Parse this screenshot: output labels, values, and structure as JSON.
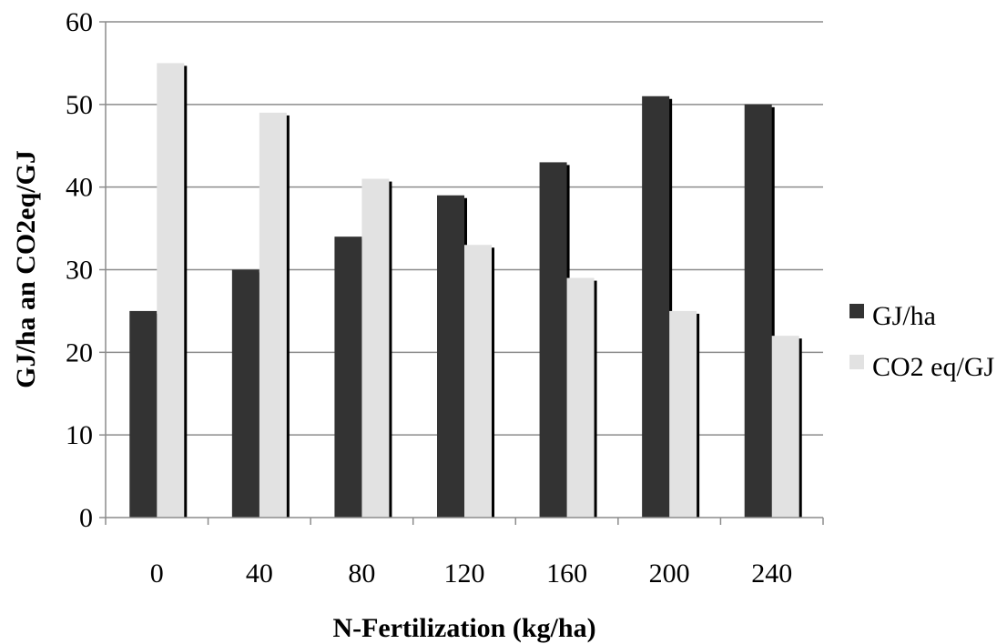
{
  "chart_data": {
    "type": "bar",
    "xlabel": "N-Fertilization (kg/ha)",
    "ylabel": "GJ/ha an CO2eq/GJ",
    "categories": [
      "0",
      "40",
      "80",
      "120",
      "160",
      "200",
      "240"
    ],
    "series": [
      {
        "name": "GJ/ha",
        "values": [
          25,
          30,
          34,
          39,
          43,
          51,
          50
        ],
        "color": "#333333"
      },
      {
        "name": "CO2 eq/GJ",
        "values": [
          55,
          49,
          41,
          33,
          29,
          25,
          22
        ],
        "color": "#e2e2e2"
      }
    ],
    "ylim": [
      0,
      60
    ],
    "yticks": [
      "0",
      "10",
      "20",
      "30",
      "40",
      "50",
      "60"
    ],
    "grid": true,
    "legend": "right"
  }
}
